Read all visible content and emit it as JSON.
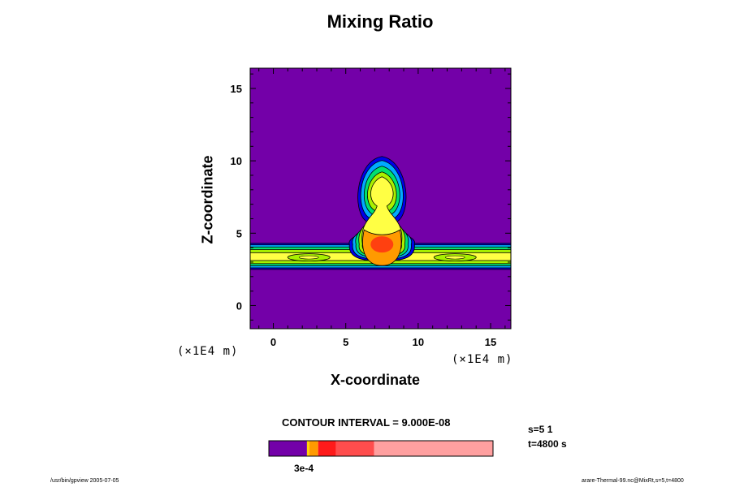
{
  "chart_data": {
    "type": "heatmap",
    "title": "Mixing Ratio",
    "xlabel": "X-coordinate",
    "ylabel": "Z-coordinate",
    "x_unit_label": "(×1E4 m)",
    "y_unit_label": "(×1E4 m)",
    "xlim": [
      -1.6,
      16.4
    ],
    "ylim": [
      -1.6,
      16.4
    ],
    "x_ticks": [
      0,
      5,
      10,
      15
    ],
    "y_ticks": [
      0,
      5,
      10,
      15
    ],
    "contour_interval_text": "CONTOUR INTERVAL = 9.000E-08",
    "colorbar": {
      "colors": [
        "#7300a8",
        "#ffd400",
        "#ff9a00",
        "#ff1a1a",
        "#ff4d4d",
        "#ffa0a0"
      ],
      "fractions": [
        0.17,
        0.01,
        0.04,
        0.08,
        0.17,
        0.53
      ],
      "label": "3e-4"
    },
    "palette": [
      "#7300a8",
      "#0000e8",
      "#00aaff",
      "#00e070",
      "#a8f000",
      "#ffff44",
      "#ff9a00",
      "#ff4010"
    ],
    "features": {
      "band": {
        "x_start": -1.6,
        "x_end": 16.4,
        "z_bottom": 2.5,
        "z_top": 4.3
      },
      "plume_center_x": 7.5,
      "thermal_top_z": 10.3,
      "thermal_core_z": 4.0
    },
    "info": {
      "s_line": "s=5 1",
      "t_line": "t=4800 s"
    },
    "footer_left": "/usr/bin/gpview 2005-07-05",
    "footer_right": "arare-Thermal-99.nc@MixRt,s=5,t=4800"
  }
}
